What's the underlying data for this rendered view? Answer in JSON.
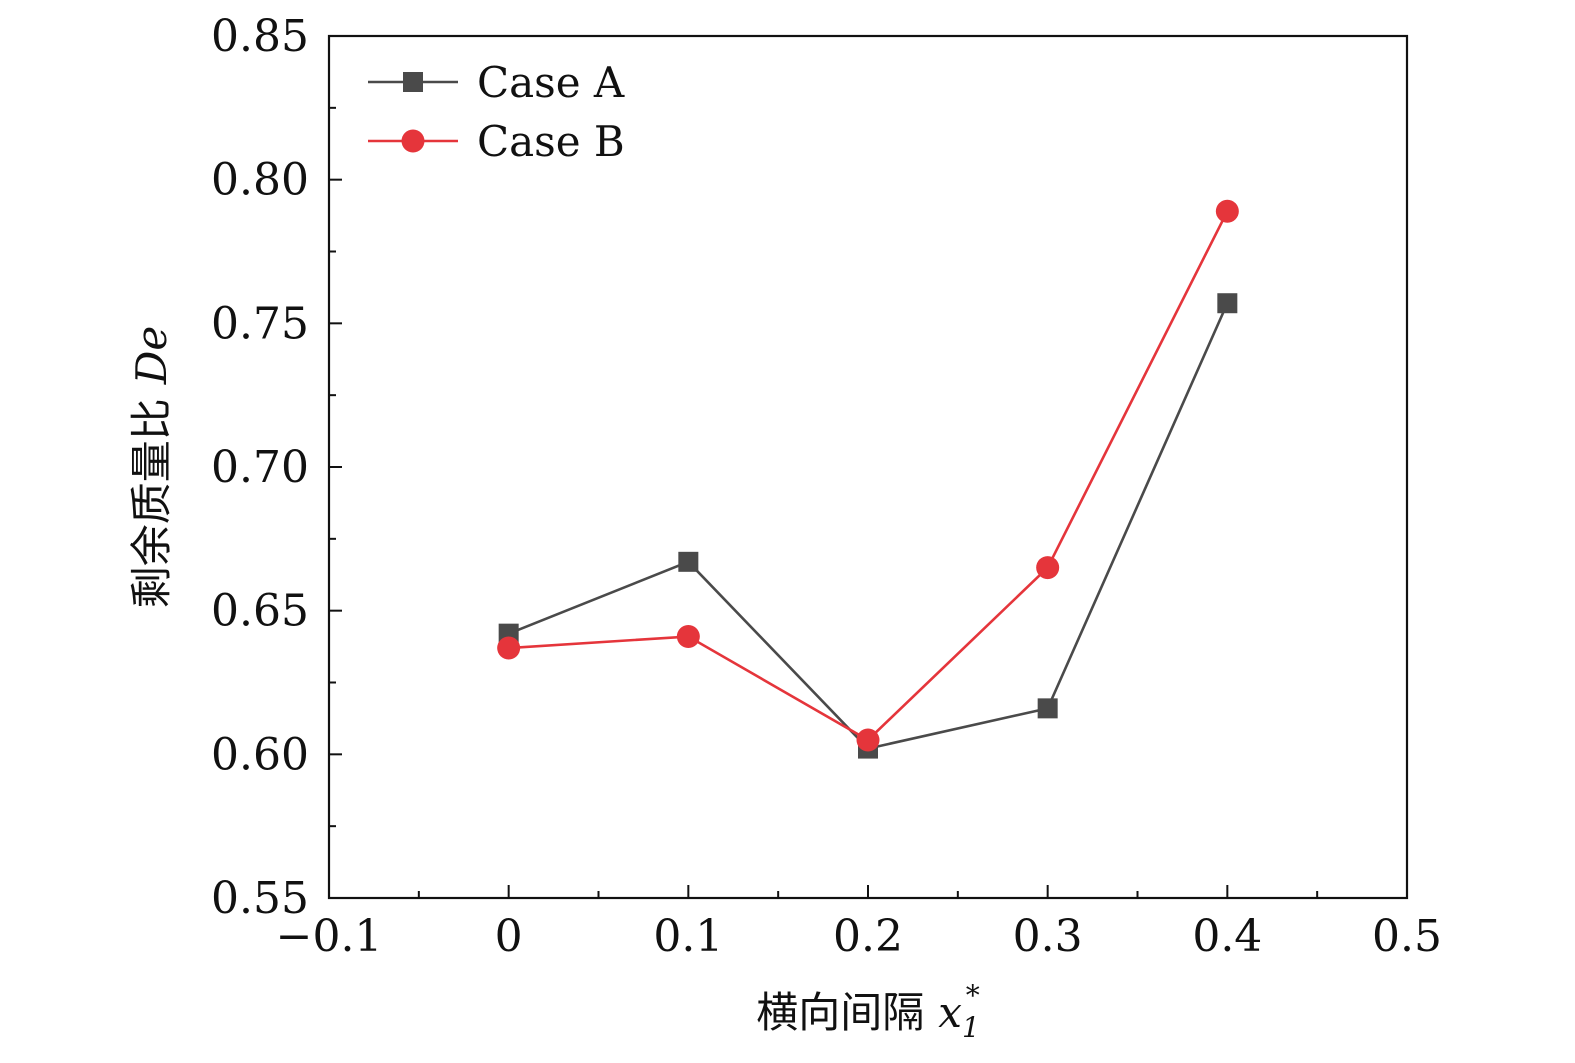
{
  "chart_data": {
    "type": "line",
    "title": "",
    "xlabel": {
      "text": "横向间隔",
      "var": "x",
      "var_sub": "1",
      "var_sup": "*"
    },
    "ylabel": {
      "text": "剩余质量比",
      "var": "De"
    },
    "xlim": [
      -0.1,
      0.5
    ],
    "ylim": [
      0.55,
      0.85
    ],
    "xticks": [
      -0.1,
      0,
      0.1,
      0.2,
      0.3,
      0.4,
      0.5
    ],
    "xtick_labels": [
      "−0.1",
      "0",
      "0.1",
      "0.2",
      "0.3",
      "0.4",
      "0.5"
    ],
    "yticks": [
      0.55,
      0.6,
      0.65,
      0.7,
      0.75,
      0.8,
      0.85
    ],
    "ytick_labels": [
      "0.55",
      "0.60",
      "0.65",
      "0.70",
      "0.75",
      "0.80",
      "0.85"
    ],
    "x": [
      0,
      0.1,
      0.2,
      0.3,
      0.4
    ],
    "series": [
      {
        "name": "Case A",
        "marker": "square",
        "color": "#4a4a4a",
        "values": [
          0.642,
          0.667,
          0.602,
          0.616,
          0.757
        ]
      },
      {
        "name": "Case B",
        "marker": "circle",
        "color": "#e5353b",
        "values": [
          0.637,
          0.641,
          0.605,
          0.665,
          0.789
        ]
      }
    ],
    "legend": "top-left",
    "grid": false
  }
}
